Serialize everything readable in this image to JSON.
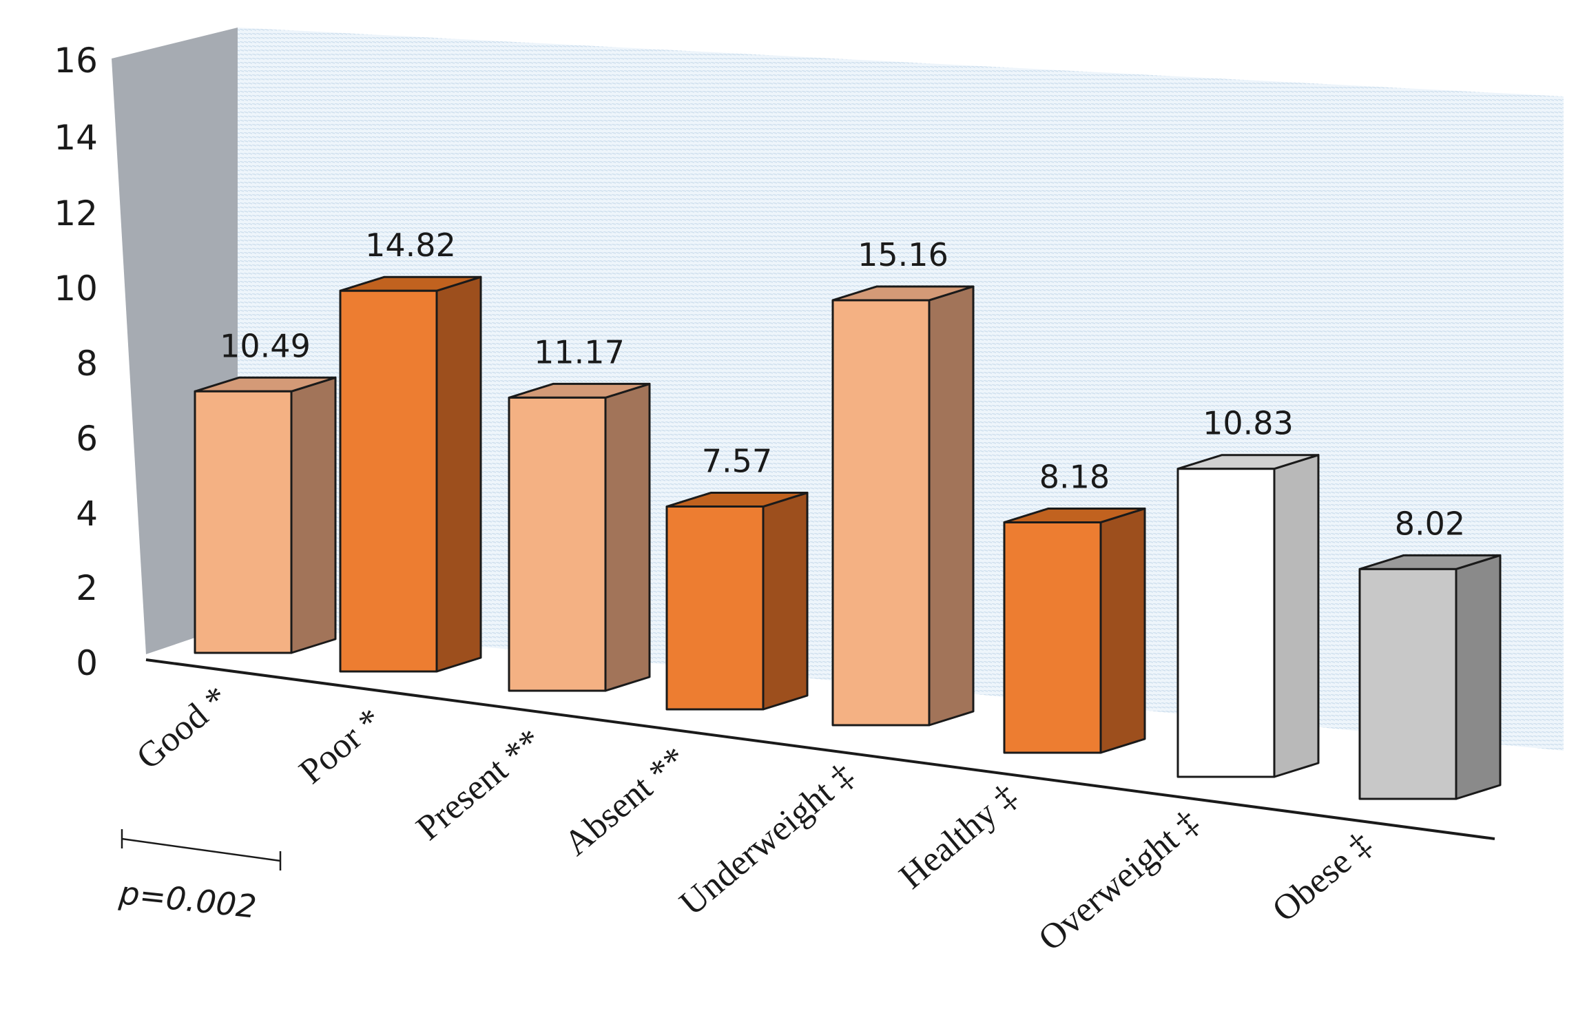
{
  "chart_data": {
    "type": "bar",
    "title": "",
    "xlabel": "",
    "ylabel": "",
    "ylim": [
      0,
      16
    ],
    "yticks": [
      "0",
      "2",
      "4",
      "6",
      "8",
      "10",
      "12",
      "14",
      "16"
    ],
    "categories": [
      "Good *",
      "Poor *",
      "Present **",
      "Absent **",
      "Underweight ‡",
      "Healthy ‡",
      "Overweight ‡",
      "Obese ‡"
    ],
    "values": [
      10.49,
      14.82,
      11.17,
      7.57,
      15.16,
      8.18,
      10.83,
      8.02
    ],
    "value_labels": [
      "10.49",
      "14.82",
      "11.17",
      "7.57",
      "15.16",
      "8.18",
      "10.83",
      "8.02"
    ],
    "annotation": "p=0.002",
    "colors": {
      "light_orange": "#F4B183",
      "dark_orange": "#ED7D31",
      "white": "#FFFFFF",
      "gray": "#C8C8C8",
      "back_wall": "#DCEAF5",
      "side_wall": "#A6ABB2"
    },
    "bar_colors": [
      "light_orange",
      "dark_orange",
      "light_orange",
      "dark_orange",
      "light_orange",
      "dark_orange",
      "white",
      "gray"
    ]
  }
}
